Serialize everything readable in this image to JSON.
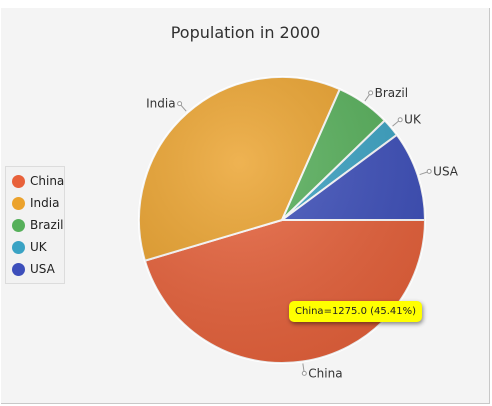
{
  "chart_data": {
    "type": "pie",
    "title": "Population in 2000",
    "categories": [
      "China",
      "India",
      "Brazil",
      "UK",
      "USA"
    ],
    "values": [
      1275.0,
      1017.0,
      172.0,
      59.0,
      285.0
    ],
    "colors": [
      "#e8613a",
      "#eba22c",
      "#56b05a",
      "#3aa3c4",
      "#3d4fbb"
    ],
    "legend": "left",
    "tooltip": "China=1275.0 (45.41%)"
  }
}
